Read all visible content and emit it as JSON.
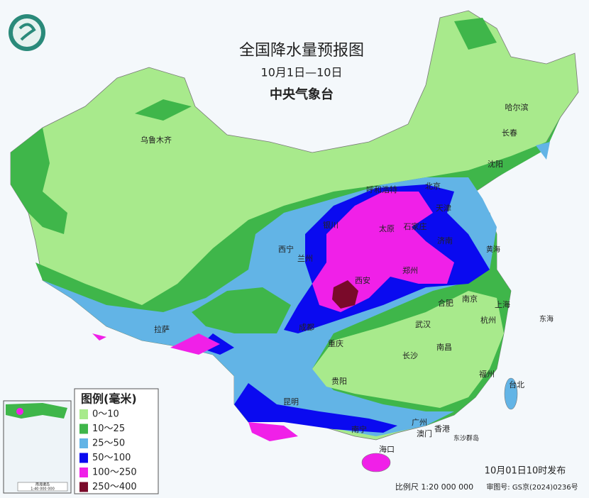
{
  "header": {
    "title": "全国降水量预报图",
    "period": "10月1日—10日",
    "issuer": "中央气象台"
  },
  "cities": [
    "乌鲁木齐",
    "哈尔滨",
    "长春",
    "沈阳",
    "北京",
    "天津",
    "呼和浩特",
    "银川",
    "太原",
    "石家庄",
    "济南",
    "西宁",
    "兰州",
    "西安",
    "郑州",
    "合肥",
    "南京",
    "上海",
    "拉萨",
    "成都",
    "重庆",
    "武汉",
    "杭州",
    "长沙",
    "南昌",
    "福州",
    "台北",
    "贵阳",
    "昆明",
    "南宁",
    "广州",
    "香港",
    "澳门",
    "海口"
  ],
  "seas": [
    "黄海",
    "东海",
    "东沙群岛"
  ],
  "legend": {
    "title": "图例(毫米)",
    "items": [
      {
        "label": "0～10",
        "color": "#a8ea8c"
      },
      {
        "label": "10～25",
        "color": "#3fb64a"
      },
      {
        "label": "25～50",
        "color": "#62b4e6"
      },
      {
        "label": "50～100",
        "color": "#0a0af0"
      },
      {
        "label": "100～250",
        "color": "#f020e8"
      },
      {
        "label": "250～400",
        "color": "#7a0a2a"
      }
    ]
  },
  "inset": {
    "label": "南海诸岛",
    "scale": "1:40 000 000"
  },
  "footer": {
    "issued": "10月01日10时发布",
    "scale": "比例尺 1:20 000 000",
    "review": "审图号: GS京(2024)0236号"
  }
}
